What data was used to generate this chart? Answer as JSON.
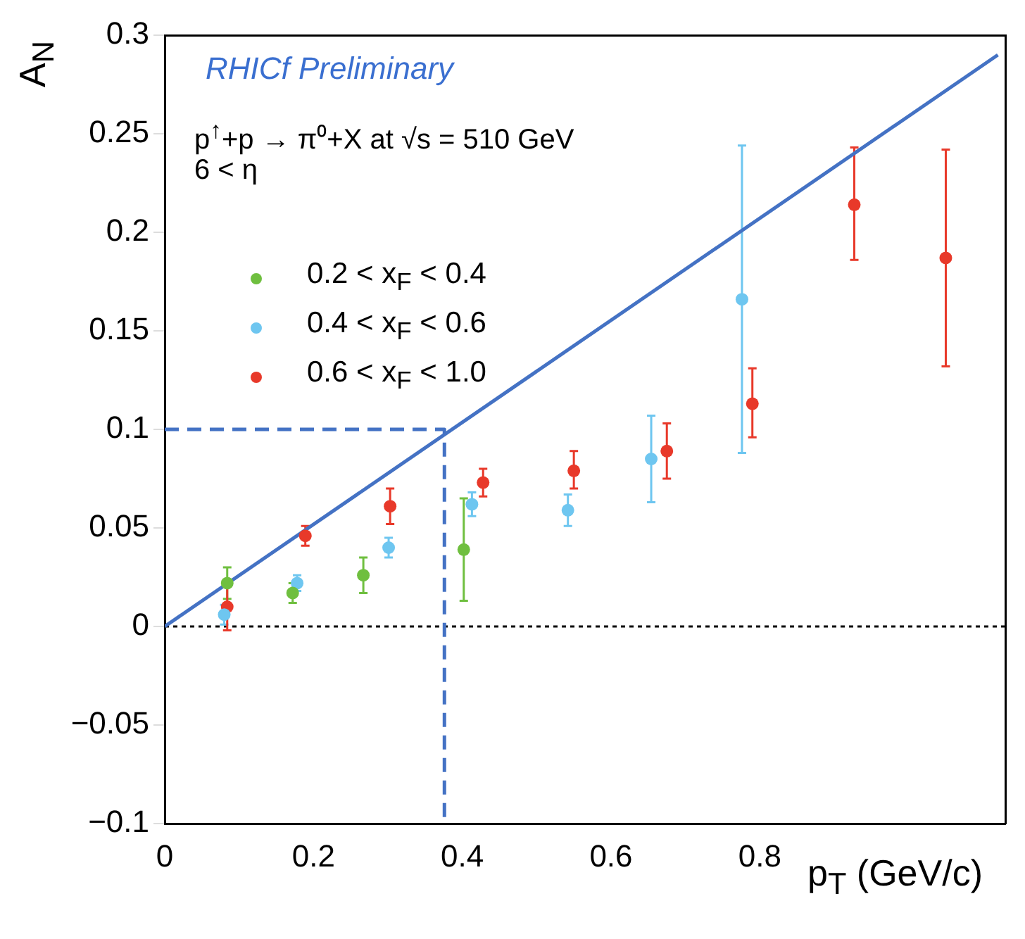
{
  "chart_data": {
    "type": "scatter",
    "xlabel": "p$_{T}$ (GeV/c)",
    "ylabel": "A$_{N}$",
    "annotations": [
      "RHICf Preliminary",
      "p$^{↑}$+p → π⁰+X at √s = 510 GeV",
      "6 < η"
    ],
    "xlim": [
      0,
      1.13
    ],
    "xticks": [
      0,
      0.2,
      0.4,
      0.6,
      0.8
    ],
    "ylim": [
      -0.1,
      0.3
    ],
    "yticks": [
      {
        "value": -0.1,
        "label": "−0.1"
      },
      {
        "value": -0.05,
        "label": "−0.05"
      },
      0,
      0.05,
      0.1,
      0.15,
      0.2,
      0.25,
      0.3
    ],
    "grid": false,
    "legend": "top left",
    "marker": "circle",
    "ref_lines": [
      {
        "axis": "y",
        "value": 0,
        "color": "#000000",
        "line_style": "dotted"
      }
    ],
    "series": [
      {
        "name": "0.2 < x$_{F}$ < 0.4",
        "color": "#6fbf3f",
        "x": [
          0.084,
          0.172,
          0.267,
          0.402
        ],
        "values": [
          0.022,
          0.017,
          0.026,
          0.039
        ],
        "errors": [
          0.008,
          0.005,
          0.009,
          0.026
        ]
      },
      {
        "name": "0.4 < x$_{F}$ < 0.6",
        "color": "#6ec6f0",
        "x": [
          0.08,
          0.178,
          0.301,
          0.413,
          0.542,
          0.654,
          0.776
        ],
        "values": [
          0.006,
          0.022,
          0.04,
          0.062,
          0.059,
          0.085,
          0.166
        ],
        "errors": [
          0.005,
          0.004,
          0.005,
          0.006,
          0.008,
          0.022,
          [
            0.088,
            0.244
          ]
        ]
      },
      {
        "name": "0.6 < x$_{F}$ < 1.0",
        "color": "#e8392a",
        "x": [
          0.084,
          0.189,
          0.303,
          0.428,
          0.55,
          0.675,
          0.79,
          0.927,
          1.05
        ],
        "values": [
          0.01,
          0.046,
          0.061,
          0.073,
          0.079,
          0.089,
          0.113,
          0.214,
          0.187
        ],
        "errors": [
          0.012,
          0.005,
          0.009,
          0.007,
          [
            0.07,
            0.089
          ],
          0.014,
          [
            0.096,
            0.131
          ],
          [
            0.186,
            0.243
          ],
          [
            0.132,
            0.242
          ]
        ]
      },
      {
        "type": "line",
        "color": "#4472c4",
        "marker": "none",
        "line_style": "solid",
        "x": [
          0,
          1.12
        ],
        "values": [
          0,
          0.29
        ]
      },
      {
        "type": "line",
        "color": "#4472c4",
        "marker": "none",
        "line_style": "dashed",
        "x": [
          0,
          0.376,
          0.376
        ],
        "values": [
          0.1,
          0.1,
          -0.1
        ]
      }
    ]
  }
}
